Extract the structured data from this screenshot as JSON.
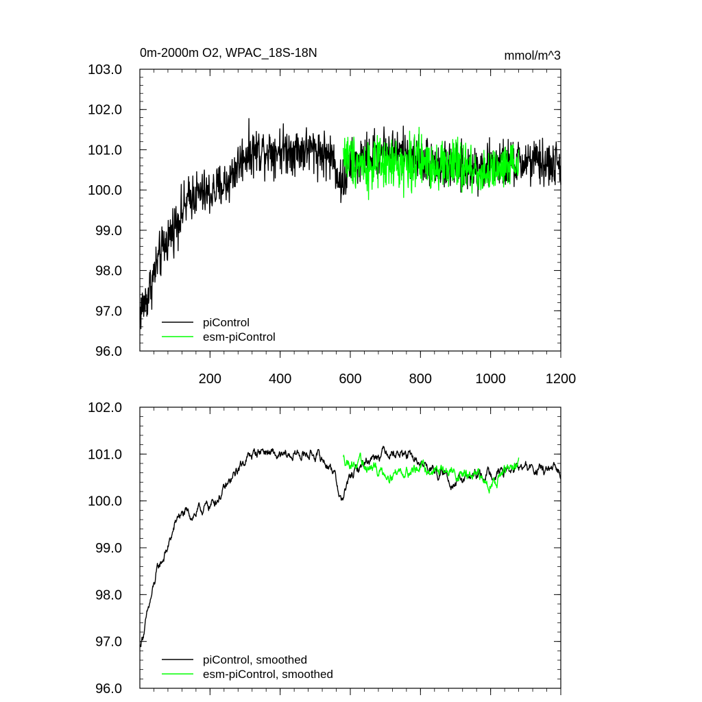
{
  "chart_data": [
    {
      "type": "line",
      "title": "0m-2000m O2, WPAC_18S-18N",
      "units": "mmol/m^3",
      "xlabel": "",
      "ylabel": "",
      "xlim": [
        0,
        1200
      ],
      "ylim": [
        96.0,
        103.0
      ],
      "x_ticks": [
        200,
        400,
        600,
        800,
        1000,
        1200
      ],
      "x_tick_labels": [
        "200",
        "400",
        "600",
        "800",
        "1000",
        "1200"
      ],
      "y_ticks": [
        96.0,
        97.0,
        98.0,
        99.0,
        100.0,
        101.0,
        102.0,
        103.0
      ],
      "y_tick_labels": [
        "96.0",
        "97.0",
        "98.0",
        "99.0",
        "100.0",
        "101.0",
        "102.0",
        "103.0"
      ],
      "legend_position": "bottom-left",
      "series": [
        {
          "name": "piControl",
          "color": "#000000",
          "x_range": [
            1,
            1200
          ],
          "approx_trend": [
            [
              1,
              97.0
            ],
            [
              20,
              97.3
            ],
            [
              50,
              98.2
            ],
            [
              80,
              98.8
            ],
            [
              110,
              99.3
            ],
            [
              150,
              99.9
            ],
            [
              200,
              99.9
            ],
            [
              250,
              100.2
            ],
            [
              300,
              100.9
            ],
            [
              350,
              101.0
            ],
            [
              400,
              101.0
            ],
            [
              450,
              101.0
            ],
            [
              500,
              101.0
            ],
            [
              550,
              100.8
            ],
            [
              575,
              100.1
            ],
            [
              600,
              100.6
            ],
            [
              700,
              101.0
            ],
            [
              800,
              100.8
            ],
            [
              900,
              100.5
            ],
            [
              1000,
              100.6
            ],
            [
              1100,
              100.7
            ],
            [
              1200,
              100.6
            ]
          ],
          "noise_amplitude": 0.45
        },
        {
          "name": "esm-piControl",
          "color": "#00ff00",
          "x_range": [
            580,
            1080
          ],
          "approx_trend": [
            [
              580,
              100.9
            ],
            [
              650,
              100.6
            ],
            [
              700,
              100.6
            ],
            [
              800,
              100.7
            ],
            [
              900,
              100.6
            ],
            [
              1000,
              100.4
            ],
            [
              1080,
              100.6
            ]
          ],
          "noise_amplitude": 0.5
        }
      ]
    },
    {
      "type": "line",
      "title": "",
      "xlabel": "",
      "ylabel": "",
      "xlim": [
        0,
        1200
      ],
      "ylim": [
        96.0,
        102.0
      ],
      "x_ticks": [
        200,
        400,
        600,
        800,
        1000,
        1200
      ],
      "y_ticks": [
        96.0,
        97.0,
        98.0,
        99.0,
        100.0,
        101.0,
        102.0
      ],
      "y_tick_labels": [
        "96.0",
        "97.0",
        "98.0",
        "99.0",
        "100.0",
        "101.0",
        "102.0"
      ],
      "legend_position": "bottom-left",
      "series": [
        {
          "name": "piControl, smoothed",
          "color": "#000000",
          "x_range": [
            1,
            1200
          ],
          "approx_trend": [
            [
              1,
              96.9
            ],
            [
              20,
              97.5
            ],
            [
              50,
              98.5
            ],
            [
              80,
              99.0
            ],
            [
              110,
              99.7
            ],
            [
              150,
              99.7
            ],
            [
              200,
              99.9
            ],
            [
              250,
              100.3
            ],
            [
              300,
              100.9
            ],
            [
              350,
              101.1
            ],
            [
              400,
              100.9
            ],
            [
              450,
              101.0
            ],
            [
              500,
              101.0
            ],
            [
              550,
              100.7
            ],
            [
              575,
              100.0
            ],
            [
              600,
              100.5
            ],
            [
              650,
              100.9
            ],
            [
              700,
              101.1
            ],
            [
              750,
              101.0
            ],
            [
              800,
              100.8
            ],
            [
              900,
              100.4
            ],
            [
              1000,
              100.6
            ],
            [
              1100,
              100.7
            ],
            [
              1200,
              100.6
            ]
          ],
          "noise_amplitude": 0.2
        },
        {
          "name": "esm-piControl, smoothed",
          "color": "#00ff00",
          "x_range": [
            580,
            1080
          ],
          "approx_trend": [
            [
              580,
              100.9
            ],
            [
              650,
              100.7
            ],
            [
              700,
              100.6
            ],
            [
              800,
              100.7
            ],
            [
              900,
              100.6
            ],
            [
              1000,
              100.4
            ],
            [
              1080,
              100.8
            ]
          ],
          "noise_amplitude": 0.22
        }
      ]
    }
  ]
}
